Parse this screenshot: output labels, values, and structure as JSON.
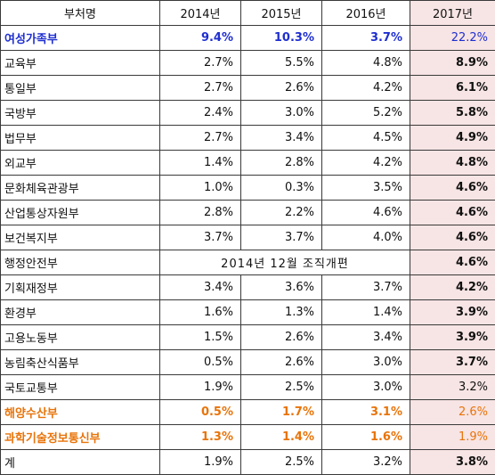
{
  "table": {
    "headers": [
      "부처명",
      "2014년",
      "2015년",
      "2016년",
      "2017년"
    ],
    "rows": [
      {
        "dept": "여성가족부",
        "y2014": "9.4%",
        "y2015": "10.3%",
        "y2016": "3.7%",
        "y2017": "22.2%"
      },
      {
        "dept": "교육부",
        "y2014": "2.7%",
        "y2015": "5.5%",
        "y2016": "4.8%",
        "y2017": "8.9%"
      },
      {
        "dept": "통일부",
        "y2014": "2.7%",
        "y2015": "2.6%",
        "y2016": "4.2%",
        "y2017": "6.1%"
      },
      {
        "dept": "국방부",
        "y2014": "2.4%",
        "y2015": "3.0%",
        "y2016": "5.2%",
        "y2017": "5.8%"
      },
      {
        "dept": "법무부",
        "y2014": "2.7%",
        "y2015": "3.4%",
        "y2016": "4.5%",
        "y2017": "4.9%"
      },
      {
        "dept": "외교부",
        "y2014": "1.4%",
        "y2015": "2.8%",
        "y2016": "4.2%",
        "y2017": "4.8%"
      },
      {
        "dept": "문화체육관광부",
        "y2014": "1.0%",
        "y2015": "0.3%",
        "y2016": "3.5%",
        "y2017": "4.6%"
      },
      {
        "dept": "산업통상자원부",
        "y2014": "2.8%",
        "y2015": "2.2%",
        "y2016": "4.6%",
        "y2017": "4.6%"
      },
      {
        "dept": "보건복지부",
        "y2014": "3.7%",
        "y2015": "3.7%",
        "y2016": "4.0%",
        "y2017": "4.6%"
      },
      {
        "dept": "행정안전부",
        "merged_note": "2014년 12월 조직개편",
        "y2017": "4.6%"
      },
      {
        "dept": "기획재정부",
        "y2014": "3.4%",
        "y2015": "3.6%",
        "y2016": "3.7%",
        "y2017": "4.2%"
      },
      {
        "dept": "환경부",
        "y2014": "1.6%",
        "y2015": "1.3%",
        "y2016": "1.4%",
        "y2017": "3.9%"
      },
      {
        "dept": "고용노동부",
        "y2014": "1.5%",
        "y2015": "2.6%",
        "y2016": "3.4%",
        "y2017": "3.9%"
      },
      {
        "dept": "농림축산식품부",
        "y2014": "0.5%",
        "y2015": "2.6%",
        "y2016": "3.0%",
        "y2017": "3.7%"
      },
      {
        "dept": "국토교통부",
        "y2014": "1.9%",
        "y2015": "2.5%",
        "y2016": "3.0%",
        "y2017": "3.2%"
      },
      {
        "dept": "해양수산부",
        "y2014": "0.5%",
        "y2015": "1.7%",
        "y2016": "3.1%",
        "y2017": "2.6%"
      },
      {
        "dept": "과학기술정보통신부",
        "y2014": "1.3%",
        "y2015": "1.4%",
        "y2016": "1.6%",
        "y2017": "1.9%"
      },
      {
        "dept": "계",
        "y2014": "1.9%",
        "y2015": "2.5%",
        "y2016": "3.2%",
        "y2017": "3.8%"
      }
    ]
  },
  "colors": {
    "highlight_row_blue": "#1f2fd0",
    "highlight_row_orange": "#e8740a",
    "column_2017_background": "#f7e4e4",
    "border": "#3a3a3a"
  }
}
